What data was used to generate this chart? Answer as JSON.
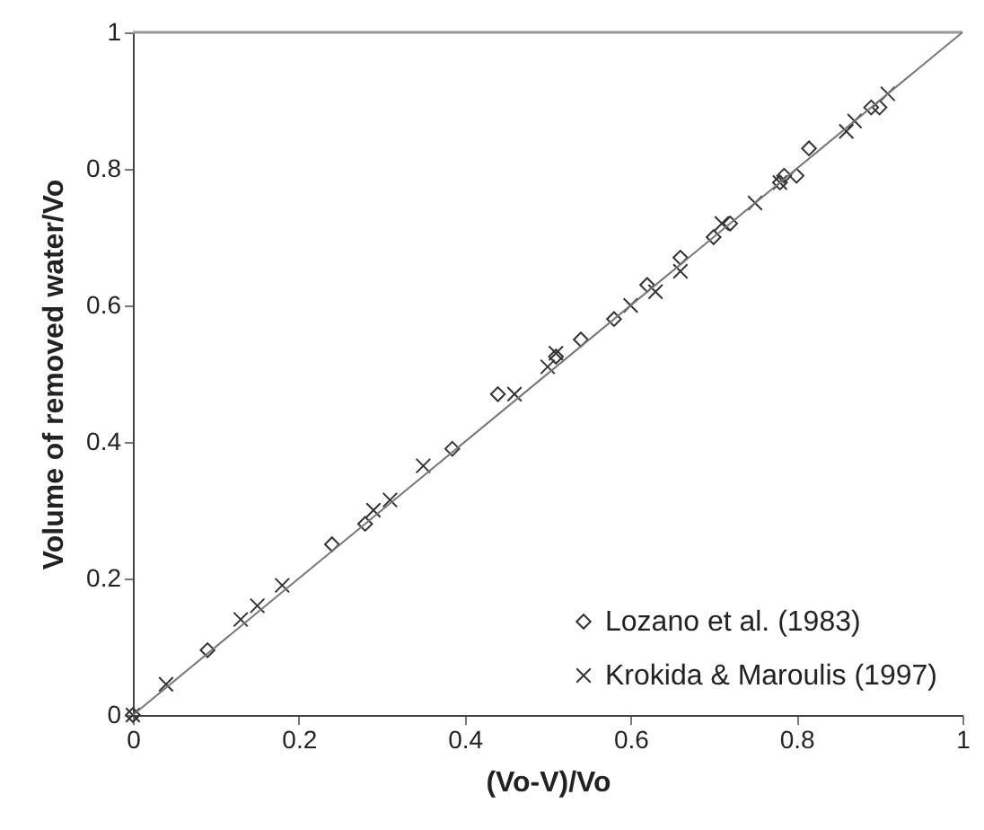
{
  "chart_data": {
    "type": "scatter",
    "xlabel": "(Vo-V)/Vo",
    "ylabel": "Volume of removed water/Vo",
    "xlim": [
      0,
      1
    ],
    "ylim": [
      0,
      1
    ],
    "xticks": [
      0,
      0.2,
      0.4,
      0.6,
      0.8,
      1
    ],
    "yticks": [
      0,
      0.2,
      0.4,
      0.6,
      0.8,
      1
    ],
    "grid": false,
    "legend": "bottom right",
    "series": [
      {
        "name": "Lozano et al. (1983)",
        "color": "#333333",
        "marker": "diamond",
        "x": [
          0,
          0.09,
          0.24,
          0.28,
          0.385,
          0.44,
          0.51,
          0.54,
          0.58,
          0.62,
          0.66,
          0.7,
          0.72,
          0.78,
          0.785,
          0.8,
          0.815,
          0.89,
          0.9
        ],
        "values": [
          0,
          0.095,
          0.25,
          0.28,
          0.39,
          0.47,
          0.525,
          0.55,
          0.58,
          0.63,
          0.67,
          0.7,
          0.72,
          0.78,
          0.79,
          0.79,
          0.83,
          0.89,
          0.89
        ]
      },
      {
        "name": "Krokida & Maroulis (1997)",
        "color": "#333333",
        "marker": "cross",
        "x": [
          0,
          0.04,
          0.13,
          0.15,
          0.18,
          0.29,
          0.31,
          0.35,
          0.46,
          0.5,
          0.51,
          0.6,
          0.63,
          0.66,
          0.71,
          0.75,
          0.78,
          0.86,
          0.87,
          0.91
        ],
        "values": [
          0,
          0.045,
          0.14,
          0.16,
          0.19,
          0.3,
          0.315,
          0.365,
          0.47,
          0.51,
          0.53,
          0.6,
          0.62,
          0.65,
          0.72,
          0.75,
          0.78,
          0.855,
          0.87,
          0.91
        ]
      },
      {
        "type": "line",
        "color": "#777777",
        "marker": "none",
        "x": [
          0,
          1
        ],
        "values": [
          0,
          1
        ]
      }
    ]
  }
}
